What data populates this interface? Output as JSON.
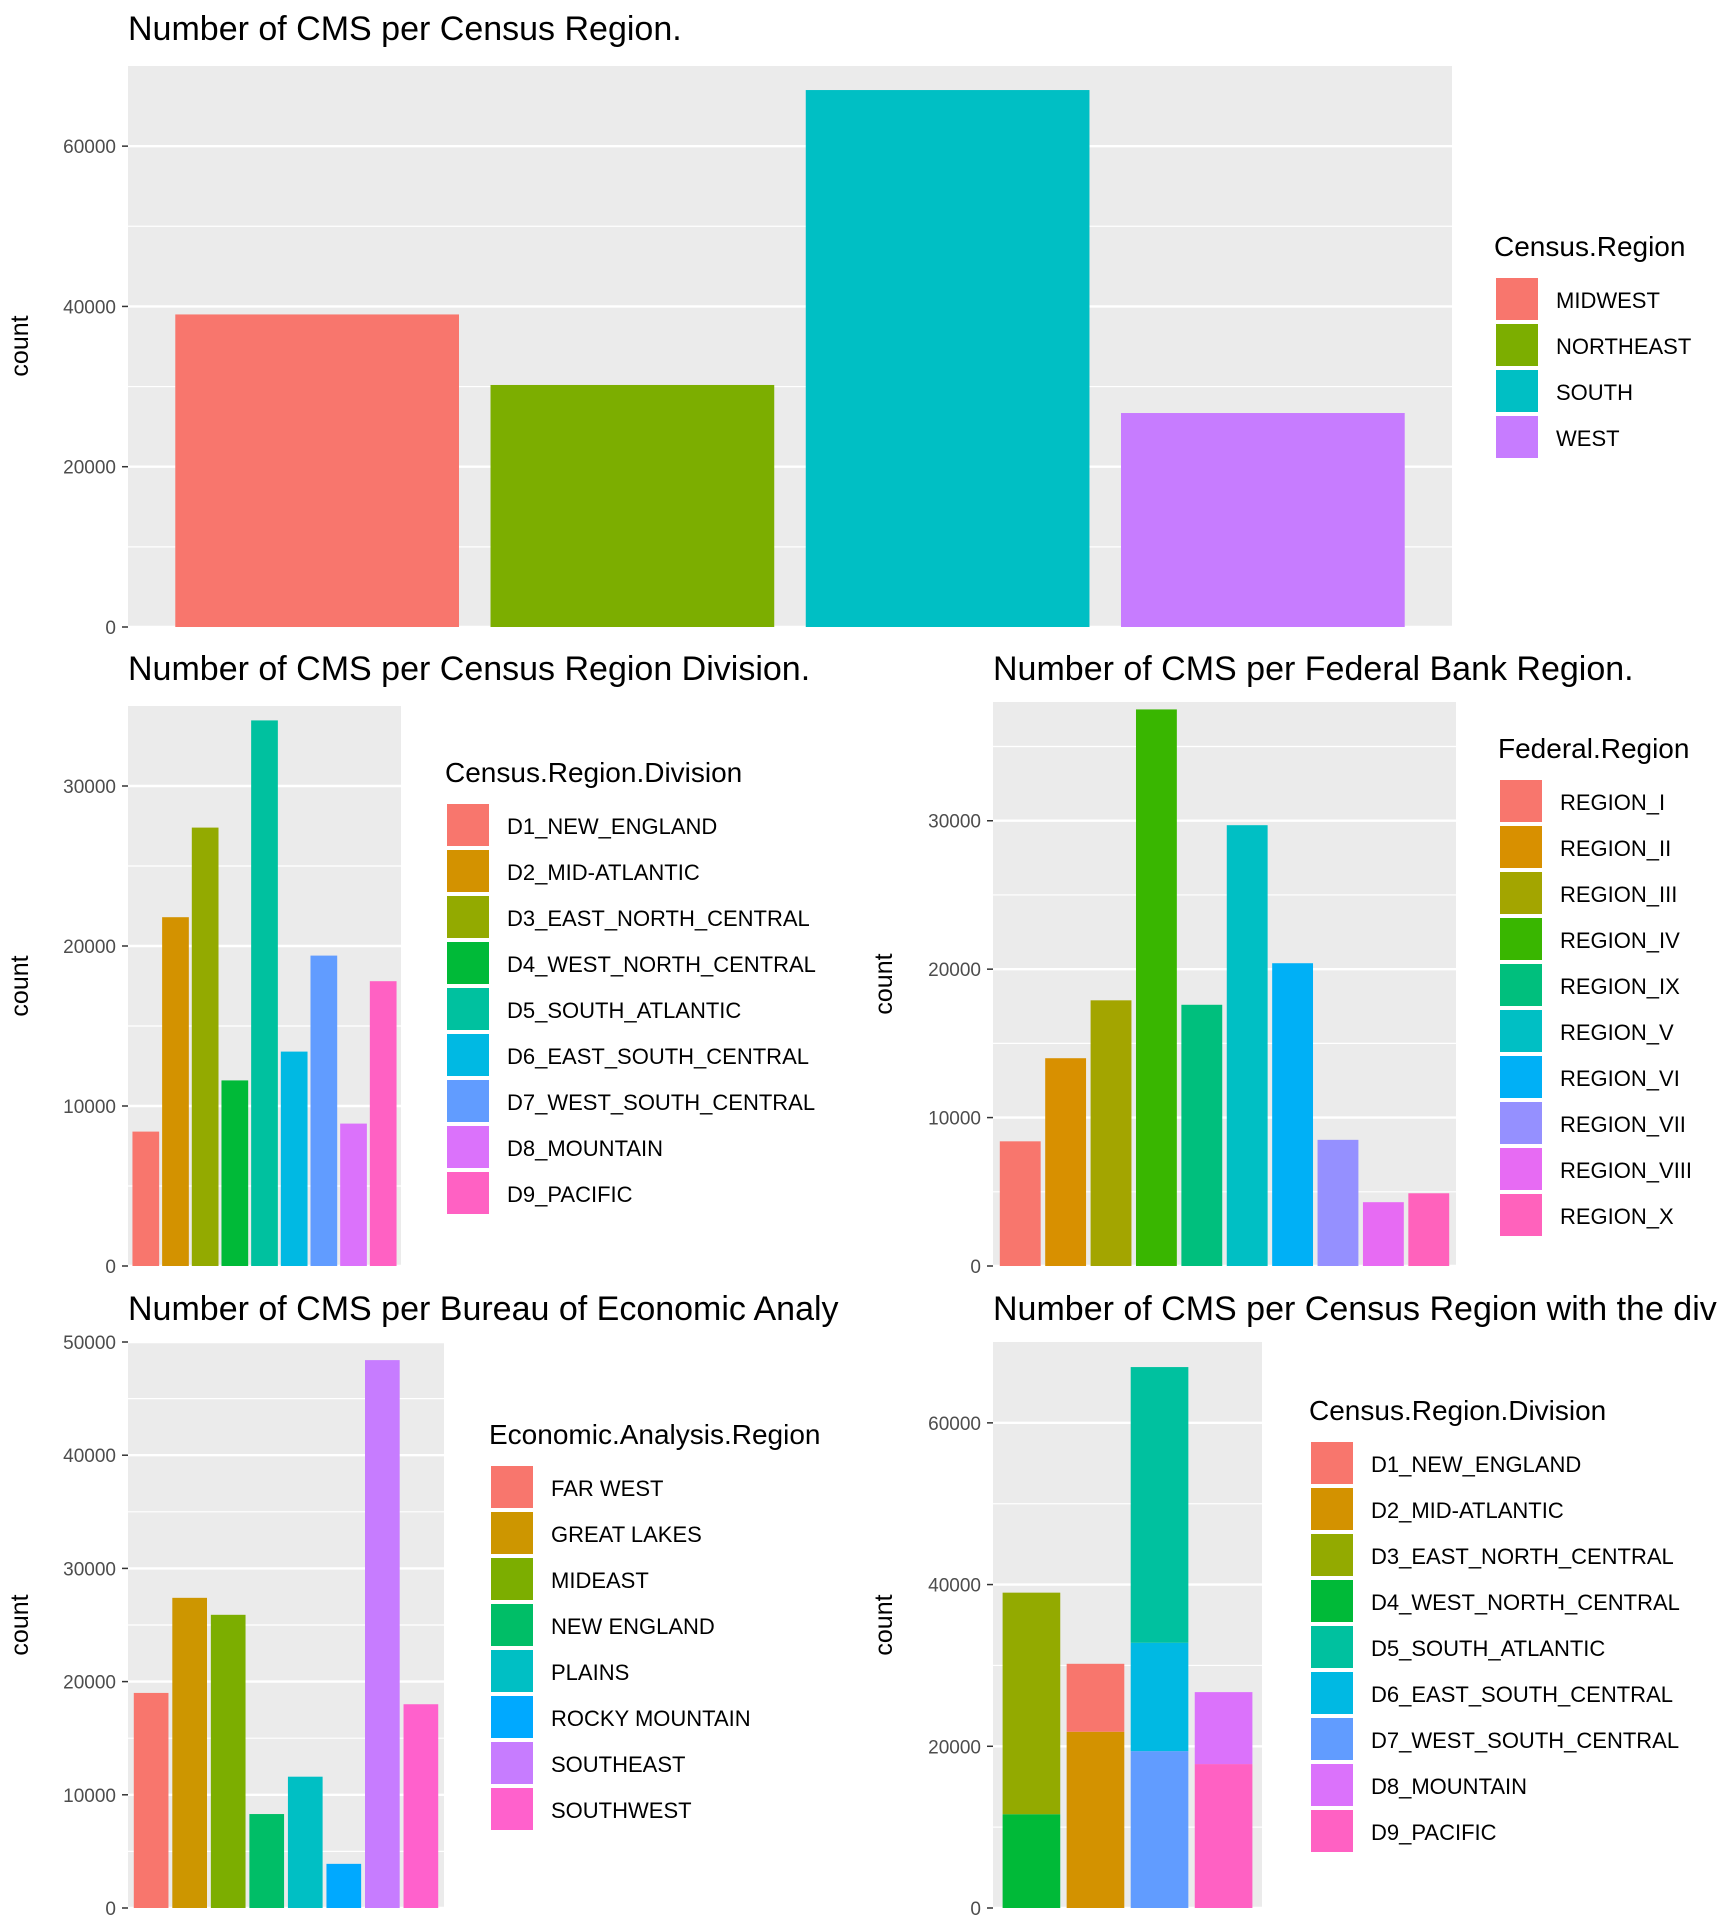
{
  "chart_data": [
    {
      "id": "p1",
      "type": "bar",
      "title": "Number of CMS per Census Region.",
      "ylabel": "count",
      "ylim": [
        0,
        70000
      ],
      "y_ticks": [
        0,
        20000,
        40000,
        60000
      ],
      "legend_title": "Census.Region",
      "legend_position": "right",
      "categories": [
        "MIDWEST",
        "NORTHEAST",
        "SOUTH",
        "WEST"
      ],
      "values": [
        39000,
        30200,
        67000,
        26700
      ],
      "colors": [
        "#F8766D",
        "#7CAE00",
        "#00BFC4",
        "#C77CFF"
      ]
    },
    {
      "id": "p2",
      "type": "bar",
      "title": "Number of CMS per Census Region Division.",
      "ylabel": "count",
      "ylim": [
        0,
        35000
      ],
      "y_ticks": [
        0,
        10000,
        20000,
        30000
      ],
      "legend_title": "Census.Region.Division",
      "legend_position": "right",
      "categories": [
        "D1_NEW_ENGLAND",
        "D2_MID-ATLANTIC",
        "D3_EAST_NORTH_CENTRAL",
        "D4_WEST_NORTH_CENTRAL",
        "D5_SOUTH_ATLANTIC",
        "D6_EAST_SOUTH_CENTRAL",
        "D7_WEST_SOUTH_CENTRAL",
        "D8_MOUNTAIN",
        "D9_PACIFIC"
      ],
      "values": [
        8400,
        21800,
        27400,
        11600,
        34100,
        13400,
        19400,
        8900,
        17800
      ],
      "colors": [
        "#F8766D",
        "#D39200",
        "#93AA00",
        "#00BA38",
        "#00C19F",
        "#00B9E3",
        "#619CFF",
        "#DB72FB",
        "#FF61C3"
      ]
    },
    {
      "id": "p3",
      "type": "bar",
      "title": "Number of CMS per Federal Bank Region.",
      "ylabel": "count",
      "ylim": [
        0,
        38000
      ],
      "y_ticks": [
        0,
        10000,
        20000,
        30000
      ],
      "legend_title": "Federal.Region",
      "legend_position": "right",
      "categories": [
        "REGION_I",
        "REGION_II",
        "REGION_III",
        "REGION_IV",
        "REGION_IX",
        "REGION_V",
        "REGION_VI",
        "REGION_VII",
        "REGION_VIII",
        "REGION_X"
      ],
      "values": [
        8400,
        14000,
        17900,
        37500,
        17600,
        29700,
        20400,
        8500,
        4300,
        4900
      ],
      "colors": [
        "#F8766D",
        "#D89000",
        "#A3A500",
        "#39B600",
        "#00BF7D",
        "#00BFC4",
        "#00B0F6",
        "#9590FF",
        "#E76BF3",
        "#FF62BC"
      ]
    },
    {
      "id": "p4",
      "type": "bar",
      "title": "Number of CMS per Bureau of Economic Analy",
      "ylabel": "count",
      "ylim": [
        0,
        50000
      ],
      "y_ticks": [
        0,
        10000,
        20000,
        30000,
        40000,
        50000
      ],
      "legend_title": "Economic.Analysis.Region",
      "legend_position": "right",
      "categories": [
        "FAR WEST",
        "GREAT LAKES",
        "MIDEAST",
        "NEW ENGLAND",
        "PLAINS",
        "ROCKY MOUNTAIN",
        "SOUTHEAST",
        "SOUTHWEST"
      ],
      "values": [
        19000,
        27400,
        25900,
        8300,
        11600,
        3900,
        48400,
        18000
      ],
      "colors": [
        "#F8766D",
        "#CD9600",
        "#7CAE00",
        "#00BE67",
        "#00BFC4",
        "#00A9FF",
        "#C77CFF",
        "#FF61CC"
      ]
    },
    {
      "id": "p5",
      "type": "bar",
      "stacked": true,
      "title": "Number of CMS per Census Region with the div",
      "ylabel": "count",
      "ylim": [
        0,
        70000
      ],
      "y_ticks": [
        0,
        20000,
        40000,
        60000
      ],
      "legend_title": "Census.Region.Division",
      "legend_position": "right",
      "series": [
        {
          "name": "D1_NEW_ENGLAND",
          "color": "#F8766D",
          "values": [
            0,
            8400,
            0,
            0
          ]
        },
        {
          "name": "D2_MID-ATLANTIC",
          "color": "#D39200",
          "values": [
            0,
            21800,
            0,
            0
          ]
        },
        {
          "name": "D3_EAST_NORTH_CENTRAL",
          "color": "#93AA00",
          "values": [
            27400,
            0,
            0,
            0
          ]
        },
        {
          "name": "D4_WEST_NORTH_CENTRAL",
          "color": "#00BA38",
          "values": [
            11600,
            0,
            0,
            0
          ]
        },
        {
          "name": "D5_SOUTH_ATLANTIC",
          "color": "#00C19F",
          "values": [
            0,
            0,
            34100,
            0
          ]
        },
        {
          "name": "D6_EAST_SOUTH_CENTRAL",
          "color": "#00B9E3",
          "values": [
            0,
            0,
            13400,
            0
          ]
        },
        {
          "name": "D7_WEST_SOUTH_CENTRAL",
          "color": "#619CFF",
          "values": [
            0,
            0,
            19400,
            0
          ]
        },
        {
          "name": "D8_MOUNTAIN",
          "color": "#DB72FB",
          "values": [
            0,
            0,
            0,
            8900
          ]
        },
        {
          "name": "D9_PACIFIC",
          "color": "#FF61C3",
          "values": [
            0,
            0,
            0,
            17800
          ]
        }
      ],
      "stack_order": [
        [
          "D4_WEST_NORTH_CENTRAL",
          "D3_EAST_NORTH_CENTRAL"
        ],
        [
          "D2_MID-ATLANTIC",
          "D1_NEW_ENGLAND"
        ],
        [
          "D7_WEST_SOUTH_CENTRAL",
          "D6_EAST_SOUTH_CENTRAL",
          "D5_SOUTH_ATLANTIC"
        ],
        [
          "D9_PACIFIC",
          "D8_MOUNTAIN"
        ]
      ]
    }
  ]
}
